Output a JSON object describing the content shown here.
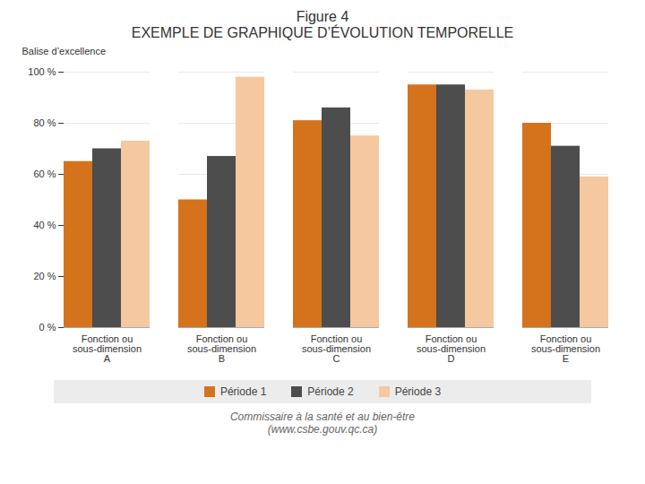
{
  "chart_data": {
    "type": "bar",
    "title": "Figure 4",
    "subtitle": "EXEMPLE DE GRAPHIQUE D’ÉVOLUTION TEMPORELLE",
    "ylabel": "Balise d’excellence",
    "categories": [
      "Fonction ou\nsous-dimension\nA",
      "Fonction ou\nsous-dimension\nB",
      "Fonction ou\nsous-dimension\nC",
      "Fonction ou\nsous-dimension\nD",
      "Fonction ou\nsous-dimension\nE"
    ],
    "series": [
      {
        "name": "Période 1",
        "color": "#D4731C",
        "values": [
          65,
          50,
          81,
          95,
          80
        ]
      },
      {
        "name": "Période 2",
        "color": "#4D4D4D",
        "values": [
          70,
          67,
          86,
          95,
          71
        ]
      },
      {
        "name": "Période 3",
        "color": "#F5C8A0",
        "values": [
          73,
          98,
          75,
          93,
          59
        ]
      }
    ],
    "ylim": [
      0,
      100
    ],
    "yticks": [
      {
        "value": 0,
        "label": "0 %"
      },
      {
        "value": 20,
        "label": "20 %"
      },
      {
        "value": 40,
        "label": "40 %"
      },
      {
        "value": 60,
        "label": "60 %"
      },
      {
        "value": 80,
        "label": "80 %"
      },
      {
        "value": 100,
        "label": "100 %"
      }
    ],
    "grid": true,
    "legend": "bottom",
    "caption": "Commissaire à la santé et au bien-être\n(www.csbe.gouv.qc.ca)"
  }
}
